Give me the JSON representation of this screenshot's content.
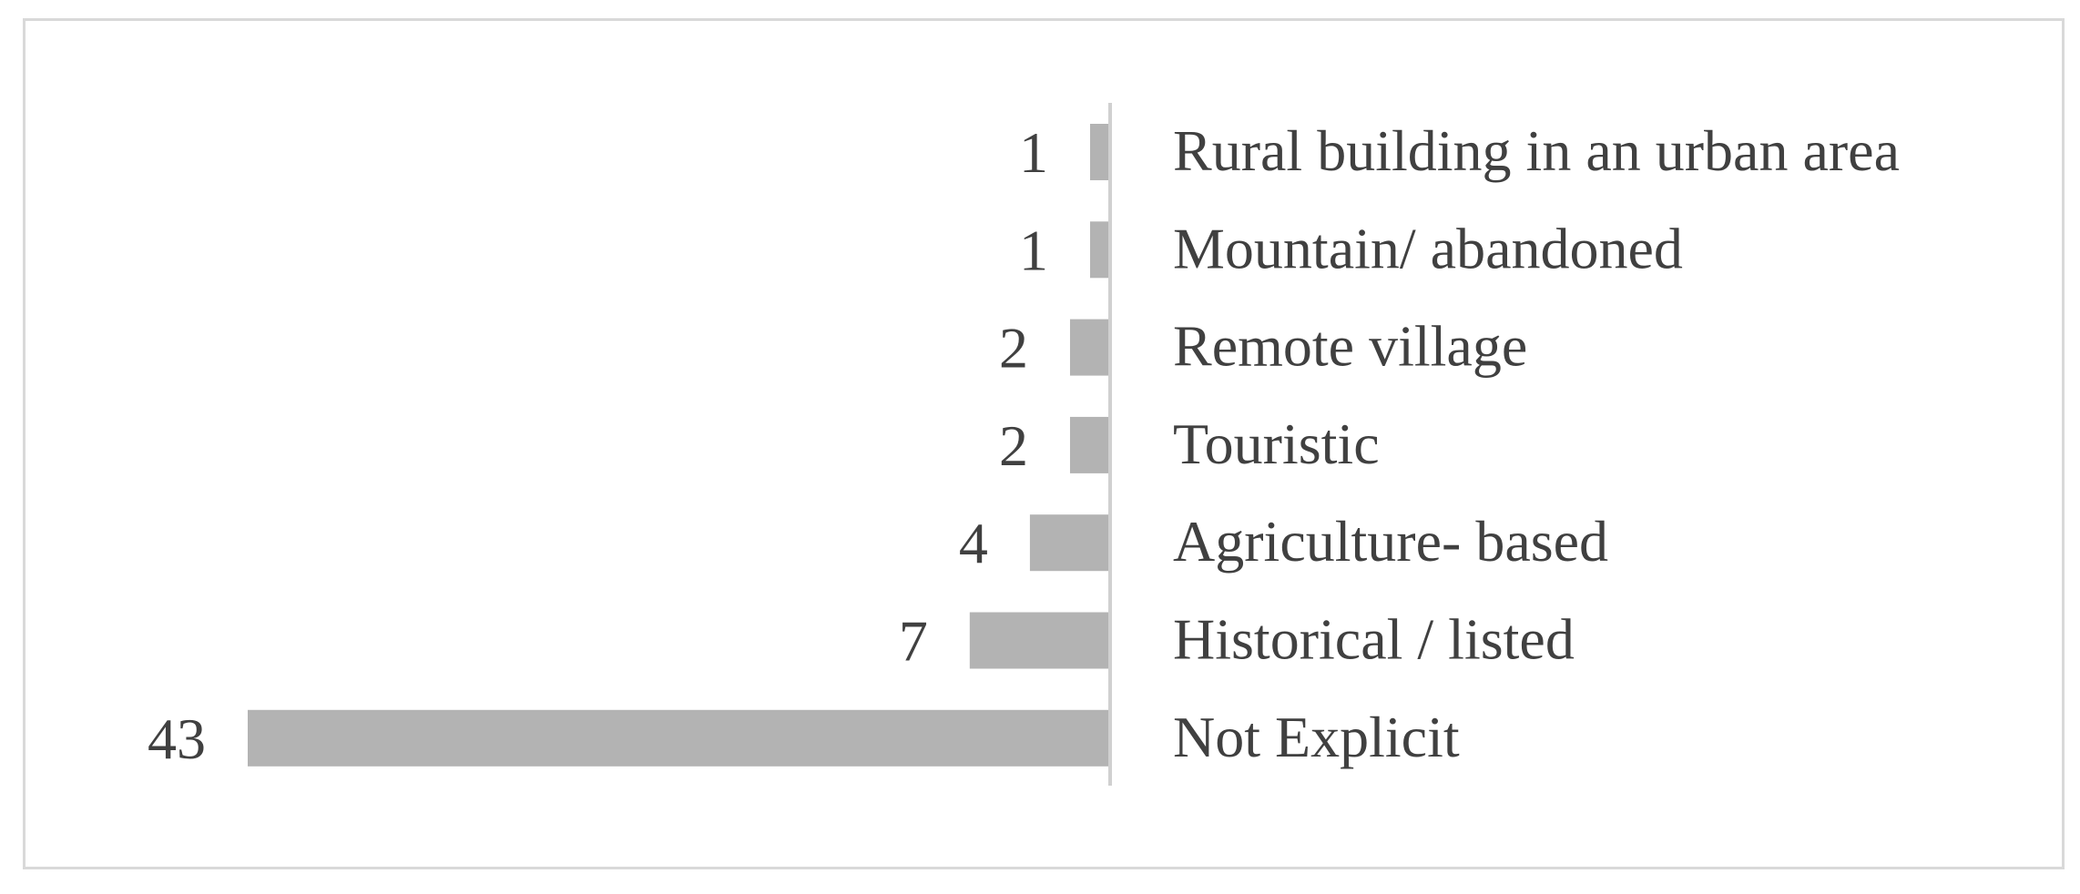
{
  "chart_data": {
    "type": "bar",
    "orientation": "horizontal",
    "direction": "right-to-left",
    "categories": [
      "Rural building in an urban area",
      "Mountain/ abandoned",
      "Remote village",
      "Touristic",
      "Agriculture- based",
      "Historical / listed",
      "Not Explicit"
    ],
    "values": [
      1,
      1,
      2,
      2,
      4,
      7,
      43
    ],
    "data_labels": [
      "1",
      "1",
      "2",
      "2",
      "4",
      "7",
      "43"
    ],
    "title": "",
    "xlabel": "",
    "ylabel": "",
    "xlim": [
      0,
      43
    ],
    "grid": false,
    "legend": "none",
    "bar_color": "#b3b3b3",
    "axis_color": "#d0d0d0",
    "text_color": "#404040",
    "frame_color": "#d9d9d9"
  }
}
